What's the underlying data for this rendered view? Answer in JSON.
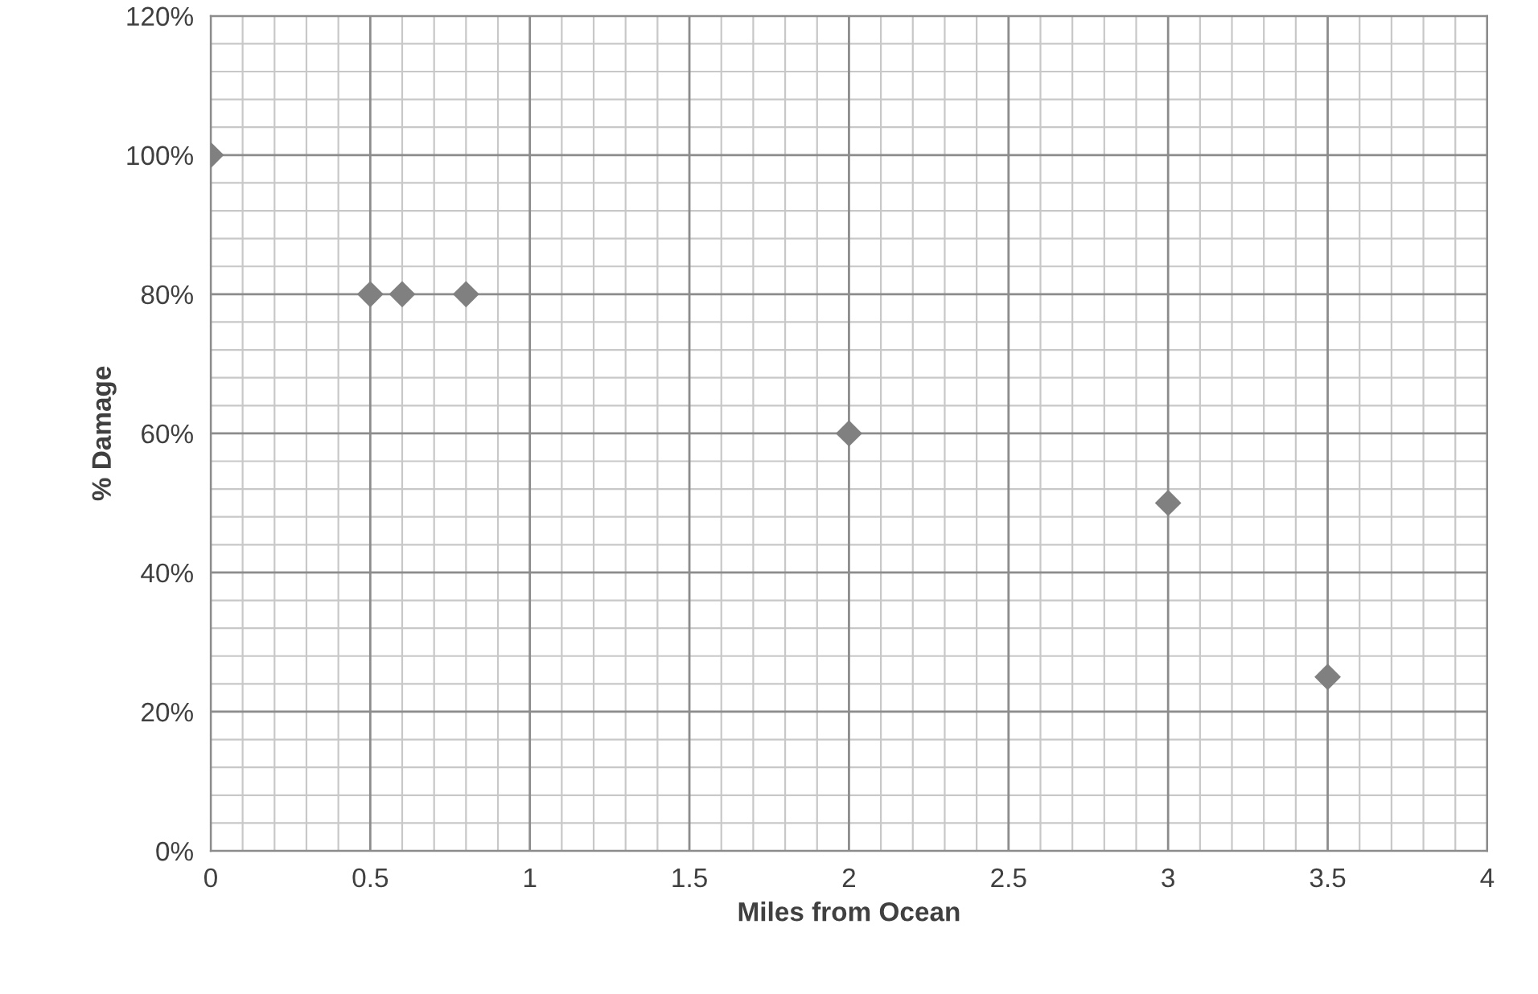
{
  "chart_data": {
    "type": "scatter",
    "xlabel": "Miles from Ocean",
    "ylabel": "% Damage",
    "x": [
      0,
      0.5,
      0.6,
      0.8,
      2,
      3,
      3.5
    ],
    "series": [
      {
        "color": "#808080",
        "values": [
          100,
          80,
          80,
          80,
          60,
          50,
          25
        ]
      }
    ],
    "marker": "diamond",
    "grid": true,
    "legend": false,
    "xlim": [
      0,
      4
    ],
    "xticks": [
      0,
      0.5,
      1,
      1.5,
      2,
      2.5,
      3,
      3.5,
      4
    ],
    "ylim": [
      0,
      120
    ],
    "yticks": [
      {
        "value": 0,
        "label": "0%"
      },
      {
        "value": 20,
        "label": "20%"
      },
      {
        "value": 40,
        "label": "40%"
      },
      {
        "value": 60,
        "label": "60%"
      },
      {
        "value": 80,
        "label": "80%"
      },
      {
        "value": 100,
        "label": "100%"
      },
      {
        "value": 120,
        "label": "120%"
      }
    ]
  }
}
